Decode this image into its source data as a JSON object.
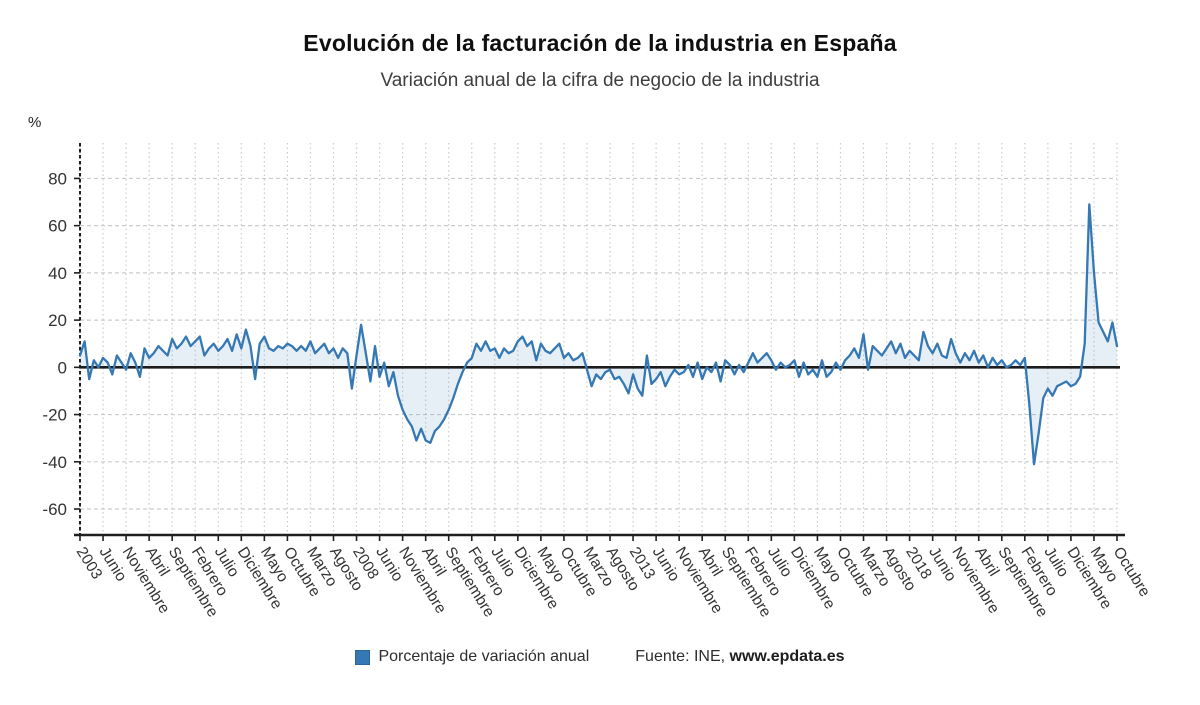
{
  "header": {
    "title": "Evolución de la facturación de la industria en España",
    "subtitle": "Variación anual de la cifra de negocio de la industria"
  },
  "legend": {
    "series_label": "Porcentaje de variación anual",
    "swatch_color": "#3578b3"
  },
  "source": {
    "prefix": "Fuente: INE, ",
    "site": "www.epdata.es"
  },
  "chart_data": {
    "type": "line",
    "title": "Evolución de la facturación de la industria en España",
    "subtitle": "Variación anual de la cifra de negocio de la industria",
    "unit": "%",
    "frequency": "monthly",
    "x_start": "Enero 2003",
    "x_end": "Octubre 2021",
    "x_tick_every_months": 5,
    "x_tick_labels": [
      "2003",
      "Junio",
      "Noviembre",
      "Abril",
      "Septiembre",
      "Febrero",
      "Julio",
      "Diciembre",
      "Mayo",
      "Octubre",
      "Marzo",
      "Agosto",
      "2008",
      "Junio",
      "Noviembre",
      "Abril",
      "Septiembre",
      "Febrero",
      "Julio",
      "Diciembre",
      "Mayo",
      "Octubre",
      "Marzo",
      "Agosto",
      "2013",
      "Junio",
      "Noviembre",
      "Abril",
      "Septiembre",
      "Febrero",
      "Julio",
      "Diciembre",
      "Mayo",
      "Octubre",
      "Marzo",
      "Agosto",
      "2018",
      "Junio",
      "Noviembre",
      "Abril",
      "Septiembre",
      "Febrero",
      "Julio",
      "Diciembre",
      "Mayo",
      "Octubre"
    ],
    "yticks": [
      80,
      60,
      40,
      20,
      0,
      -20,
      -40,
      -60
    ],
    "ylim": [
      -71,
      95
    ],
    "grid": true,
    "legend_position": "bottom",
    "colors": {
      "line": "#3578b3",
      "fill": "rgba(53,120,179,0.12)",
      "axis": "#1f1f1f",
      "grid": "#cccccc",
      "text": "#333333"
    },
    "series": [
      {
        "name": "Porcentaje de variación anual",
        "values": [
          5,
          11,
          -5,
          3,
          0,
          4,
          2,
          -3,
          5,
          2,
          -1,
          6,
          2,
          -4,
          8,
          4,
          6,
          9,
          7,
          5,
          12,
          8,
          10,
          13,
          9,
          11,
          13,
          5,
          8,
          10,
          7,
          9,
          12,
          7,
          14,
          8,
          16,
          9,
          -5,
          10,
          13,
          8,
          7,
          9,
          8,
          10,
          9,
          7,
          9,
          7,
          11,
          6,
          8,
          10,
          6,
          8,
          4,
          8,
          6,
          -9,
          5,
          18,
          6,
          -6,
          9,
          -4,
          2,
          -8,
          -2,
          -12,
          -18,
          -22,
          -25,
          -31,
          -26,
          -31,
          -32,
          -27,
          -25,
          -22,
          -18,
          -13,
          -7,
          -2,
          2,
          4,
          10,
          7,
          11,
          7,
          8,
          4,
          8,
          6,
          7,
          11,
          13,
          9,
          11,
          3,
          10,
          7,
          6,
          8,
          10,
          4,
          6,
          3,
          4,
          6,
          -1,
          -8,
          -3,
          -5,
          -2,
          -1,
          -5,
          -4,
          -7,
          -11,
          -3,
          -9,
          -12,
          5,
          -7,
          -5,
          -2,
          -8,
          -4,
          -1,
          -3,
          -2,
          1,
          -4,
          2,
          -5,
          0,
          -2,
          2,
          -6,
          3,
          1,
          -3,
          1,
          -2,
          2,
          6,
          2,
          4,
          6,
          3,
          -1,
          2,
          0,
          1,
          3,
          -4,
          2,
          -3,
          -1,
          -4,
          3,
          -4,
          -2,
          2,
          -1,
          3,
          5,
          8,
          4,
          14,
          -1,
          9,
          7,
          5,
          8,
          11,
          6,
          10,
          4,
          7,
          5,
          3,
          15,
          9,
          6,
          10,
          5,
          4,
          12,
          6,
          2,
          6,
          3,
          7,
          2,
          5,
          0,
          4,
          1,
          3,
          0,
          1,
          3,
          1,
          4,
          -16,
          -41,
          -28,
          -13,
          -9,
          -12,
          -8,
          -7,
          -6,
          -8,
          -7,
          -4,
          10,
          69,
          40,
          19,
          15,
          11,
          19,
          9
        ]
      }
    ]
  }
}
